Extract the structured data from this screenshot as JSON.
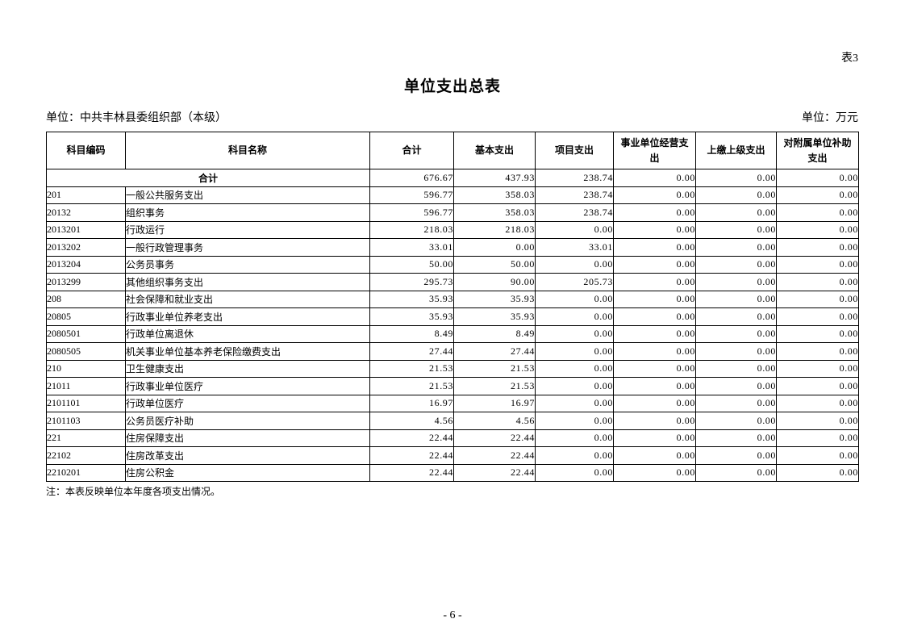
{
  "page": {
    "table_tag": "表3",
    "title": "单位支出总表",
    "unit_left": "单位：中共丰林县委组织部（本级）",
    "unit_right": "单位：万元",
    "note": "注：本表反映单位本年度各项支出情况。",
    "page_number": "- 6 -"
  },
  "table": {
    "headers": [
      "科目编码",
      "科目名称",
      "合计",
      "基本支出",
      "项目支出",
      "事业单位经营支出",
      "上缴上级支出",
      "对附属单位补助支出"
    ],
    "total_row": {
      "label": "合计",
      "values": [
        "676.67",
        "437.93",
        "238.74",
        "0.00",
        "0.00",
        "0.00"
      ]
    },
    "rows": [
      {
        "code": "201",
        "name": "一般公共服务支出",
        "values": [
          "596.77",
          "358.03",
          "238.74",
          "0.00",
          "0.00",
          "0.00"
        ]
      },
      {
        "code": "20132",
        "name": "组织事务",
        "values": [
          "596.77",
          "358.03",
          "238.74",
          "0.00",
          "0.00",
          "0.00"
        ]
      },
      {
        "code": "2013201",
        "name": "行政运行",
        "values": [
          "218.03",
          "218.03",
          "0.00",
          "0.00",
          "0.00",
          "0.00"
        ]
      },
      {
        "code": "2013202",
        "name": "一般行政管理事务",
        "values": [
          "33.01",
          "0.00",
          "33.01",
          "0.00",
          "0.00",
          "0.00"
        ]
      },
      {
        "code": "2013204",
        "name": "公务员事务",
        "values": [
          "50.00",
          "50.00",
          "0.00",
          "0.00",
          "0.00",
          "0.00"
        ]
      },
      {
        "code": "2013299",
        "name": "其他组织事务支出",
        "values": [
          "295.73",
          "90.00",
          "205.73",
          "0.00",
          "0.00",
          "0.00"
        ]
      },
      {
        "code": "208",
        "name": "社会保障和就业支出",
        "values": [
          "35.93",
          "35.93",
          "0.00",
          "0.00",
          "0.00",
          "0.00"
        ]
      },
      {
        "code": "20805",
        "name": "行政事业单位养老支出",
        "values": [
          "35.93",
          "35.93",
          "0.00",
          "0.00",
          "0.00",
          "0.00"
        ]
      },
      {
        "code": "2080501",
        "name": "行政单位离退休",
        "values": [
          "8.49",
          "8.49",
          "0.00",
          "0.00",
          "0.00",
          "0.00"
        ]
      },
      {
        "code": "2080505",
        "name": "机关事业单位基本养老保险缴费支出",
        "values": [
          "27.44",
          "27.44",
          "0.00",
          "0.00",
          "0.00",
          "0.00"
        ]
      },
      {
        "code": "210",
        "name": "卫生健康支出",
        "values": [
          "21.53",
          "21.53",
          "0.00",
          "0.00",
          "0.00",
          "0.00"
        ]
      },
      {
        "code": "21011",
        "name": "行政事业单位医疗",
        "values": [
          "21.53",
          "21.53",
          "0.00",
          "0.00",
          "0.00",
          "0.00"
        ]
      },
      {
        "code": "2101101",
        "name": "行政单位医疗",
        "values": [
          "16.97",
          "16.97",
          "0.00",
          "0.00",
          "0.00",
          "0.00"
        ]
      },
      {
        "code": "2101103",
        "name": "公务员医疗补助",
        "values": [
          "4.56",
          "4.56",
          "0.00",
          "0.00",
          "0.00",
          "0.00"
        ]
      },
      {
        "code": "221",
        "name": "住房保障支出",
        "values": [
          "22.44",
          "22.44",
          "0.00",
          "0.00",
          "0.00",
          "0.00"
        ]
      },
      {
        "code": "22102",
        "name": "住房改革支出",
        "values": [
          "22.44",
          "22.44",
          "0.00",
          "0.00",
          "0.00",
          "0.00"
        ]
      },
      {
        "code": "2210201",
        "name": "住房公积金",
        "values": [
          "22.44",
          "22.44",
          "0.00",
          "0.00",
          "0.00",
          "0.00"
        ]
      }
    ]
  }
}
